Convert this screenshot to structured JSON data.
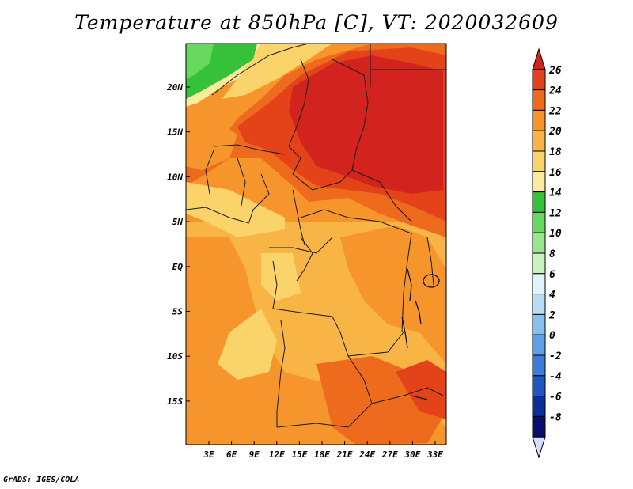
{
  "title": "Temperature at 850hPa [C], VT: 2020032609",
  "credit": "GrADS: IGES/COLA",
  "map": {
    "lon_labels": [
      "3E",
      "6E",
      "9E",
      "12E",
      "15E",
      "18E",
      "21E",
      "24E",
      "27E",
      "30E",
      "33E"
    ],
    "lat_labels": [
      "20N",
      "15N",
      "10N",
      "5N",
      "EQ",
      "5S",
      "10S",
      "15S"
    ]
  },
  "colorbar": {
    "labels": [
      "26",
      "24",
      "22",
      "20",
      "18",
      "16",
      "14",
      "12",
      "10",
      "8",
      "6",
      "4",
      "2",
      "0",
      "-2",
      "-4",
      "-6",
      "-8"
    ],
    "colors": [
      "#d2231e",
      "#e4431a",
      "#ee6a1c",
      "#f5952b",
      "#f8b445",
      "#fbd36b",
      "#fdeb9d",
      "#35c23a",
      "#66d95e",
      "#9ae68f",
      "#c9f2c1",
      "#e1f4fb",
      "#b7def4",
      "#85c1ee",
      "#5f9fe6",
      "#3b7bd9",
      "#1f56bf",
      "#0a2f9a",
      "#06106a",
      "#d9dcff"
    ]
  },
  "legend": {
    "hot": "#d2231e",
    "warm": "#f5952b",
    "cool": "#35c23a"
  }
}
